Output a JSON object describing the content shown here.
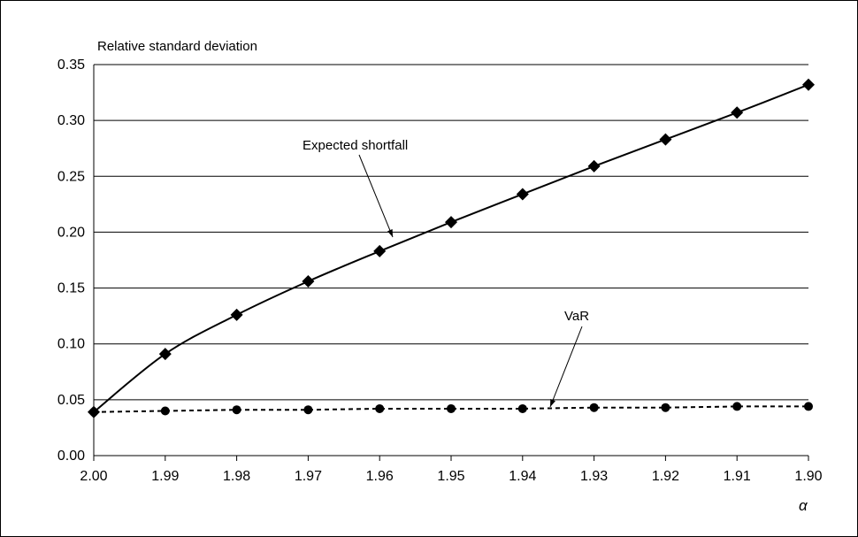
{
  "chart_data": {
    "type": "line",
    "ylabel": "Relative standard deviation",
    "xlabel": "α",
    "x": [
      2.0,
      1.99,
      1.98,
      1.97,
      1.96,
      1.95,
      1.94,
      1.93,
      1.92,
      1.91,
      1.9
    ],
    "x_tick_labels": [
      "2.00",
      "1.99",
      "1.98",
      "1.97",
      "1.96",
      "1.95",
      "1.94",
      "1.93",
      "1.92",
      "1.91",
      "1.90"
    ],
    "xlim": [
      2.0,
      1.9
    ],
    "ylim": [
      0,
      0.35
    ],
    "y_ticks": [
      0.0,
      0.05,
      0.1,
      0.15,
      0.2,
      0.25,
      0.3,
      0.35
    ],
    "y_tick_labels": [
      "0.00",
      "0.05",
      "0.10",
      "0.15",
      "0.20",
      "0.25",
      "0.30",
      "0.35"
    ],
    "grid": "horizontal",
    "series": [
      {
        "name": "Expected shortfall",
        "marker": "diamond",
        "line_style": "solid",
        "values": [
          0.039,
          0.091,
          0.126,
          0.156,
          0.183,
          0.209,
          0.234,
          0.259,
          0.283,
          0.307,
          0.332
        ]
      },
      {
        "name": "VaR",
        "marker": "circle",
        "line_style": "dashed",
        "values": [
          0.039,
          0.04,
          0.041,
          0.041,
          0.042,
          0.042,
          0.042,
          0.043,
          0.043,
          0.044,
          0.044
        ]
      }
    ],
    "annotations": [
      {
        "text": "Expected shortfall",
        "series": 0,
        "points_to_x": 1.955
      },
      {
        "text": "VaR",
        "series": 1,
        "points_to_x": 1.936
      }
    ]
  }
}
